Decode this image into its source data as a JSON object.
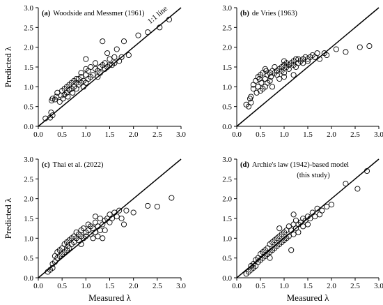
{
  "chart_data": [
    {
      "type": "scatter",
      "panel_letter": "(a)",
      "title": "Woodside and Messmer (1961)",
      "xlabel": "",
      "ylabel": "Predicted λ",
      "xlim": [
        0,
        3
      ],
      "ylim": [
        0,
        3
      ],
      "x_ticks": [
        "0.0",
        "0.5",
        "1.0",
        "1.5",
        "2.0",
        "2.5",
        "3.0"
      ],
      "y_ticks": [
        "0.0",
        "0.5",
        "1.0",
        "1.5",
        "2.0",
        "2.5",
        "3.0"
      ],
      "reference_line": "1:1 line",
      "points": [
        [
          0.15,
          0.2
        ],
        [
          0.25,
          0.22
        ],
        [
          0.27,
          0.35
        ],
        [
          0.3,
          0.28
        ],
        [
          0.28,
          0.65
        ],
        [
          0.3,
          0.7
        ],
        [
          0.35,
          0.68
        ],
        [
          0.38,
          0.75
        ],
        [
          0.4,
          0.85
        ],
        [
          0.45,
          0.62
        ],
        [
          0.48,
          0.78
        ],
        [
          0.5,
          0.9
        ],
        [
          0.52,
          0.7
        ],
        [
          0.55,
          0.8
        ],
        [
          0.55,
          0.95
        ],
        [
          0.6,
          1.0
        ],
        [
          0.6,
          0.85
        ],
        [
          0.62,
          0.75
        ],
        [
          0.65,
          1.05
        ],
        [
          0.65,
          0.92
        ],
        [
          0.7,
          1.1
        ],
        [
          0.7,
          0.95
        ],
        [
          0.72,
          0.85
        ],
        [
          0.75,
          1.15
        ],
        [
          0.75,
          1.0
        ],
        [
          0.8,
          1.1
        ],
        [
          0.8,
          0.95
        ],
        [
          0.85,
          1.2
        ],
        [
          0.85,
          1.05
        ],
        [
          0.9,
          1.1
        ],
        [
          0.9,
          1.25
        ],
        [
          0.95,
          1.15
        ],
        [
          0.95,
          1.0
        ],
        [
          1.0,
          1.3
        ],
        [
          1.0,
          1.45
        ],
        [
          1.0,
          1.1
        ],
        [
          1.0,
          1.7
        ],
        [
          1.05,
          1.2
        ],
        [
          1.05,
          1.4
        ],
        [
          1.1,
          1.5
        ],
        [
          1.1,
          1.25
        ],
        [
          1.15,
          1.3
        ],
        [
          1.2,
          1.45
        ],
        [
          1.2,
          1.6
        ],
        [
          1.25,
          1.25
        ],
        [
          1.25,
          1.4
        ],
        [
          1.3,
          1.5
        ],
        [
          1.3,
          1.35
        ],
        [
          1.35,
          1.55
        ],
        [
          1.4,
          1.45
        ],
        [
          1.4,
          1.6
        ],
        [
          1.45,
          1.5
        ],
        [
          1.5,
          1.55
        ],
        [
          1.5,
          1.7
        ],
        [
          1.55,
          1.55
        ],
        [
          1.6,
          1.6
        ],
        [
          1.6,
          1.75
        ],
        [
          1.65,
          1.95
        ],
        [
          1.7,
          1.65
        ],
        [
          1.75,
          1.75
        ],
        [
          1.8,
          2.15
        ],
        [
          1.9,
          1.8
        ],
        [
          2.1,
          2.3
        ],
        [
          2.3,
          2.38
        ],
        [
          2.55,
          2.5
        ],
        [
          2.75,
          2.7
        ],
        [
          1.45,
          1.85
        ],
        [
          1.35,
          2.15
        ],
        [
          0.9,
          1.35
        ],
        [
          0.8,
          1.2
        ]
      ]
    },
    {
      "type": "scatter",
      "panel_letter": "(b)",
      "title": "de Vries (1963)",
      "xlabel": "",
      "ylabel": "",
      "xlim": [
        0,
        3
      ],
      "ylim": [
        0,
        3
      ],
      "x_ticks": [
        "0.0",
        "0.5",
        "1.0",
        "1.5",
        "2.0",
        "2.5",
        "3.0"
      ],
      "y_ticks": [
        "0.0",
        "0.5",
        "1.0",
        "1.5",
        "2.0",
        "2.5",
        "3.0"
      ],
      "points": [
        [
          0.2,
          0.55
        ],
        [
          0.25,
          0.5
        ],
        [
          0.28,
          0.7
        ],
        [
          0.3,
          0.75
        ],
        [
          0.3,
          0.6
        ],
        [
          0.35,
          0.95
        ],
        [
          0.35,
          1.05
        ],
        [
          0.4,
          1.15
        ],
        [
          0.42,
          0.85
        ],
        [
          0.45,
          1.0
        ],
        [
          0.48,
          1.2
        ],
        [
          0.5,
          0.9
        ],
        [
          0.5,
          1.3
        ],
        [
          0.52,
          1.1
        ],
        [
          0.55,
          0.95
        ],
        [
          0.55,
          1.35
        ],
        [
          0.6,
          1.2
        ],
        [
          0.6,
          1.0
        ],
        [
          0.62,
          1.4
        ],
        [
          0.65,
          1.3
        ],
        [
          0.65,
          1.1
        ],
        [
          0.7,
          1.35
        ],
        [
          0.7,
          1.15
        ],
        [
          0.72,
          1.25
        ],
        [
          0.75,
          1.4
        ],
        [
          0.75,
          1.0
        ],
        [
          0.8,
          1.35
        ],
        [
          0.8,
          1.5
        ],
        [
          0.85,
          1.4
        ],
        [
          0.85,
          1.3
        ],
        [
          0.9,
          1.45
        ],
        [
          0.9,
          1.2
        ],
        [
          0.95,
          1.5
        ],
        [
          0.95,
          1.4
        ],
        [
          1.0,
          1.55
        ],
        [
          1.0,
          1.65
        ],
        [
          1.0,
          1.35
        ],
        [
          1.05,
          1.5
        ],
        [
          1.05,
          1.6
        ],
        [
          1.1,
          1.55
        ],
        [
          1.1,
          1.45
        ],
        [
          1.15,
          1.6
        ],
        [
          1.2,
          1.55
        ],
        [
          1.2,
          1.65
        ],
        [
          1.25,
          1.5
        ],
        [
          1.25,
          1.7
        ],
        [
          1.3,
          1.6
        ],
        [
          1.3,
          1.7
        ],
        [
          1.35,
          1.65
        ],
        [
          1.4,
          1.7
        ],
        [
          1.4,
          1.6
        ],
        [
          1.45,
          1.75
        ],
        [
          1.5,
          1.7
        ],
        [
          1.5,
          1.65
        ],
        [
          1.55,
          1.75
        ],
        [
          1.6,
          1.8
        ],
        [
          1.65,
          1.75
        ],
        [
          1.7,
          1.85
        ],
        [
          1.75,
          1.7
        ],
        [
          1.85,
          1.85
        ],
        [
          1.9,
          1.8
        ],
        [
          2.1,
          1.95
        ],
        [
          2.3,
          1.88
        ],
        [
          2.6,
          2.0
        ],
        [
          2.8,
          2.03
        ],
        [
          1.0,
          1.25
        ],
        [
          1.2,
          1.3
        ],
        [
          0.6,
          1.45
        ],
        [
          0.45,
          1.25
        ]
      ]
    },
    {
      "type": "scatter",
      "panel_letter": "(c)",
      "title": "Thai et al. (2022)",
      "xlabel": "Measured λ",
      "ylabel": "Predicted λ",
      "xlim": [
        0,
        3
      ],
      "ylim": [
        0,
        3
      ],
      "x_ticks": [
        "0.0",
        "0.5",
        "1.0",
        "1.5",
        "2.0",
        "2.5",
        "3.0"
      ],
      "y_ticks": [
        "0.0",
        "0.5",
        "1.0",
        "1.5",
        "2.0",
        "2.5",
        "3.0"
      ],
      "points": [
        [
          0.2,
          0.15
        ],
        [
          0.25,
          0.2
        ],
        [
          0.3,
          0.25
        ],
        [
          0.3,
          0.35
        ],
        [
          0.35,
          0.55
        ],
        [
          0.35,
          0.4
        ],
        [
          0.4,
          0.65
        ],
        [
          0.4,
          0.5
        ],
        [
          0.45,
          0.7
        ],
        [
          0.45,
          0.55
        ],
        [
          0.5,
          0.6
        ],
        [
          0.5,
          0.75
        ],
        [
          0.55,
          0.85
        ],
        [
          0.55,
          0.65
        ],
        [
          0.6,
          0.9
        ],
        [
          0.6,
          0.7
        ],
        [
          0.62,
          0.8
        ],
        [
          0.65,
          0.95
        ],
        [
          0.65,
          0.75
        ],
        [
          0.7,
          1.0
        ],
        [
          0.7,
          0.85
        ],
        [
          0.75,
          0.9
        ],
        [
          0.75,
          1.05
        ],
        [
          0.8,
          1.0
        ],
        [
          0.8,
          1.15
        ],
        [
          0.85,
          0.95
        ],
        [
          0.85,
          1.1
        ],
        [
          0.9,
          1.05
        ],
        [
          0.9,
          1.2
        ],
        [
          0.95,
          1.0
        ],
        [
          0.95,
          1.25
        ],
        [
          1.0,
          1.15
        ],
        [
          1.0,
          1.05
        ],
        [
          1.05,
          1.2
        ],
        [
          1.05,
          1.35
        ],
        [
          1.1,
          1.1
        ],
        [
          1.1,
          1.3
        ],
        [
          1.15,
          1.25
        ],
        [
          1.2,
          1.15
        ],
        [
          1.2,
          1.4
        ],
        [
          1.25,
          1.3
        ],
        [
          1.25,
          1.05
        ],
        [
          1.3,
          1.5
        ],
        [
          1.3,
          1.2
        ],
        [
          1.35,
          1.35
        ],
        [
          1.4,
          1.45
        ],
        [
          1.4,
          1.2
        ],
        [
          1.45,
          1.5
        ],
        [
          1.5,
          1.4
        ],
        [
          1.5,
          1.6
        ],
        [
          1.55,
          1.5
        ],
        [
          1.6,
          1.65
        ],
        [
          1.65,
          1.55
        ],
        [
          1.7,
          1.7
        ],
        [
          1.75,
          1.5
        ],
        [
          1.8,
          1.35
        ],
        [
          1.85,
          1.7
        ],
        [
          2.0,
          1.65
        ],
        [
          2.3,
          1.82
        ],
        [
          2.5,
          1.8
        ],
        [
          2.8,
          2.02
        ],
        [
          1.2,
          1.55
        ],
        [
          1.15,
          1.0
        ],
        [
          1.35,
          1.0
        ],
        [
          0.9,
          0.85
        ]
      ]
    },
    {
      "type": "scatter",
      "panel_letter": "(d)",
      "title": "Archie's law (1942)-based model",
      "subtitle": "(this study)",
      "xlabel": "Measured λ",
      "ylabel": "",
      "xlim": [
        0,
        3
      ],
      "ylim": [
        0,
        3
      ],
      "x_ticks": [
        "0.0",
        "0.5",
        "1.0",
        "1.5",
        "2.0",
        "2.5",
        "3.0"
      ],
      "y_ticks": [
        "0.0",
        "0.5",
        "1.0",
        "1.5",
        "2.0",
        "2.5",
        "3.0"
      ],
      "points": [
        [
          0.2,
          0.1
        ],
        [
          0.25,
          0.15
        ],
        [
          0.3,
          0.2
        ],
        [
          0.3,
          0.3
        ],
        [
          0.35,
          0.35
        ],
        [
          0.35,
          0.25
        ],
        [
          0.4,
          0.45
        ],
        [
          0.4,
          0.3
        ],
        [
          0.45,
          0.5
        ],
        [
          0.45,
          0.4
        ],
        [
          0.5,
          0.6
        ],
        [
          0.5,
          0.45
        ],
        [
          0.55,
          0.65
        ],
        [
          0.55,
          0.5
        ],
        [
          0.6,
          0.7
        ],
        [
          0.6,
          0.55
        ],
        [
          0.65,
          0.75
        ],
        [
          0.65,
          0.6
        ],
        [
          0.7,
          0.85
        ],
        [
          0.7,
          0.65
        ],
        [
          0.75,
          0.9
        ],
        [
          0.75,
          0.7
        ],
        [
          0.8,
          0.95
        ],
        [
          0.8,
          0.75
        ],
        [
          0.85,
          1.0
        ],
        [
          0.85,
          0.8
        ],
        [
          0.9,
          1.05
        ],
        [
          0.9,
          0.85
        ],
        [
          0.95,
          1.1
        ],
        [
          0.95,
          0.9
        ],
        [
          1.0,
          1.15
        ],
        [
          1.0,
          0.95
        ],
        [
          1.05,
          1.2
        ],
        [
          1.05,
          1.0
        ],
        [
          1.1,
          1.3
        ],
        [
          1.1,
          1.05
        ],
        [
          1.15,
          1.2
        ],
        [
          1.2,
          1.35
        ],
        [
          1.2,
          1.1
        ],
        [
          1.25,
          1.25
        ],
        [
          1.25,
          1.45
        ],
        [
          1.3,
          1.35
        ],
        [
          1.3,
          1.15
        ],
        [
          1.35,
          1.4
        ],
        [
          1.4,
          1.5
        ],
        [
          1.4,
          1.3
        ],
        [
          1.45,
          1.45
        ],
        [
          1.5,
          1.55
        ],
        [
          1.5,
          1.35
        ],
        [
          1.55,
          1.5
        ],
        [
          1.6,
          1.65
        ],
        [
          1.65,
          1.55
        ],
        [
          1.7,
          1.75
        ],
        [
          1.75,
          1.6
        ],
        [
          1.8,
          1.7
        ],
        [
          1.9,
          1.8
        ],
        [
          2.0,
          1.85
        ],
        [
          2.3,
          2.38
        ],
        [
          2.55,
          2.25
        ],
        [
          2.75,
          2.7
        ],
        [
          1.2,
          1.6
        ],
        [
          1.15,
          0.7
        ],
        [
          0.9,
          1.25
        ],
        [
          0.7,
          0.5
        ]
      ]
    }
  ]
}
